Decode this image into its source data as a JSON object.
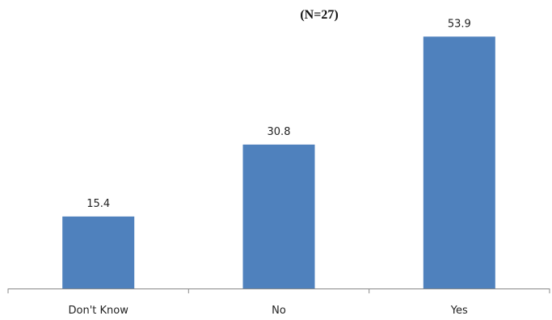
{
  "chart_data": {
    "type": "bar",
    "title": "",
    "subtitle": "(N=27)",
    "xlabel": "",
    "ylabel": "",
    "categories": [
      "Don't Know",
      "No",
      "Yes"
    ],
    "values": [
      15.4,
      30.8,
      53.9
    ],
    "data_labels": [
      "15.4",
      "30.8",
      "53.9"
    ],
    "ylim": [
      0,
      60
    ],
    "grid": false,
    "bar_color": "#4f81bd",
    "axis_color": "#888888"
  }
}
